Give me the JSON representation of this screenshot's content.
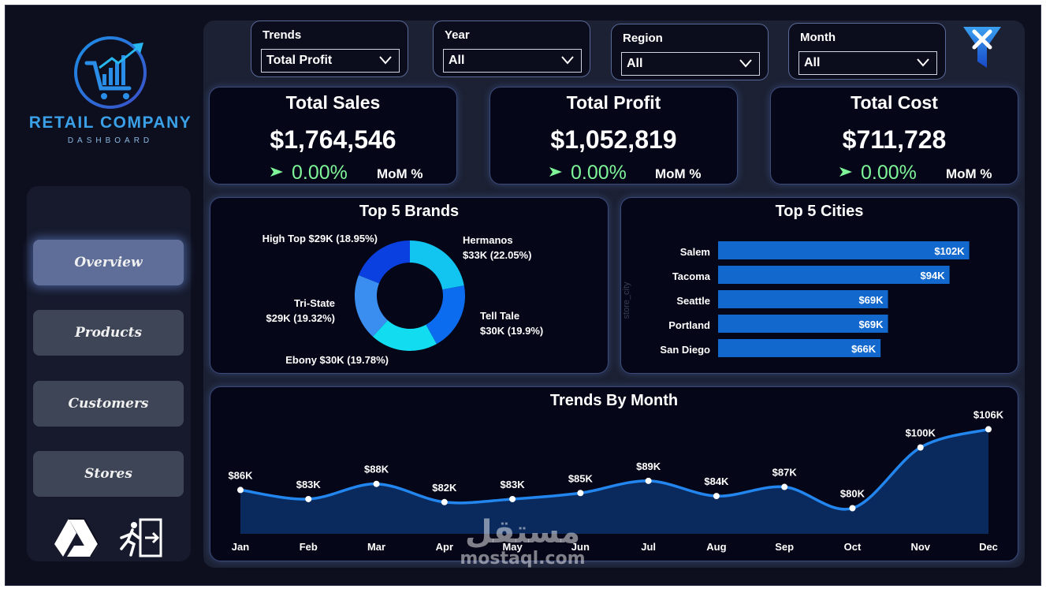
{
  "sidebar": {
    "logo_title": "RETAIL COMPANY",
    "logo_subtitle": "DASHBOARD",
    "nav": [
      {
        "label": "Overview",
        "active": true
      },
      {
        "label": "Products",
        "active": false
      },
      {
        "label": "Customers",
        "active": false
      },
      {
        "label": "Stores",
        "active": false
      }
    ],
    "icons": [
      "drive-icon",
      "exit-icon"
    ]
  },
  "slicers": [
    {
      "label": "Trends",
      "value": "Total Profit"
    },
    {
      "label": "Year",
      "value": "All"
    },
    {
      "label": "Region",
      "value": "All"
    },
    {
      "label": "Month",
      "value": "All"
    }
  ],
  "kpis": [
    {
      "title": "Total Sales",
      "value": "$1,764,546",
      "change": "0.00%",
      "mom_label": "MoM %"
    },
    {
      "title": "Total Profit",
      "value": "$1,052,819",
      "change": "0.00%",
      "mom_label": "MoM %"
    },
    {
      "title": "Total Cost",
      "value": "$711,728",
      "change": "0.00%",
      "mom_label": "MoM %"
    }
  ],
  "colors": {
    "accent": "#1e7ee6",
    "positive": "#7ff59a",
    "bar": "#1268cc",
    "line": "#2286ee"
  },
  "chart_data": [
    {
      "type": "pie",
      "title": "Top 5 Brands",
      "slices": [
        {
          "label": "Hermanos",
          "value_label": "$33K (22.05%)",
          "percent": 22.05,
          "color": "#12c4f0"
        },
        {
          "label": "Tell Tale",
          "value_label": "$30K (19.9%)",
          "percent": 19.9,
          "color": "#0c6cf0"
        },
        {
          "label": "Ebony",
          "value_label": "$30K (19.78%)",
          "percent": 19.78,
          "color": "#12dcf0"
        },
        {
          "label": "Tri-State",
          "value_label": "$29K (19.32%)",
          "percent": 19.32,
          "color": "#3a8ef0"
        },
        {
          "label": "High Top",
          "value_label": "$29K (18.95%)",
          "percent": 18.95,
          "color": "#0a40e0"
        }
      ]
    },
    {
      "type": "bar",
      "title": "Top 5 Cities",
      "ylabel": "store_city",
      "categories": [
        "Salem",
        "Tacoma",
        "Seattle",
        "Portland",
        "San Diego"
      ],
      "values": [
        102,
        94,
        69,
        69,
        66
      ],
      "value_labels": [
        "$102K",
        "$94K",
        "$69K",
        "$69K",
        "$66K"
      ],
      "xlim": [
        0,
        105
      ]
    },
    {
      "type": "area",
      "title": "Trends By Month",
      "categories": [
        "Jan",
        "Feb",
        "Mar",
        "Apr",
        "May",
        "Jun",
        "Jul",
        "Aug",
        "Sep",
        "Oct",
        "Nov",
        "Dec"
      ],
      "values": [
        86,
        83,
        88,
        82,
        83,
        85,
        89,
        84,
        87,
        80,
        100,
        106
      ],
      "value_labels": [
        "$86K",
        "$83K",
        "$88K",
        "$82K",
        "$83K",
        "$85K",
        "$89K",
        "$84K",
        "$87K",
        "$80K",
        "$100K",
        "$106K"
      ]
    }
  ],
  "watermark": {
    "arabic": "مستقل",
    "latin": "mostaql.com"
  }
}
